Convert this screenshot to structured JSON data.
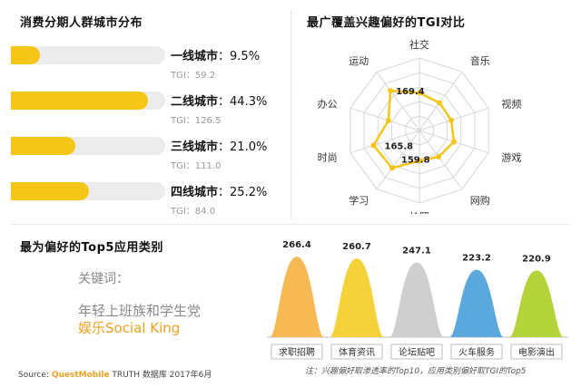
{
  "city_section": {
    "title": "消费分期人群城市分布"
  },
  "radar_section": {
    "title": "最广覆盖兴趣偏好的TGI对比"
  },
  "apps_section": {
    "title": "最为偏好的Top5应用类别",
    "keyword_label": "关键词：",
    "keyword_line1": "年轻上班族和学生党",
    "keyword_line2": "娱乐Social King"
  },
  "footer": {
    "source_prefix": "Source: ",
    "source_brand": "QuestMobile",
    "source_rest": " TRUTH 数据库 2017年6月",
    "note": "注：兴趣偏好取渗透率的Top10，应用类别偏好取TGI的Top5"
  },
  "colors": {
    "accent": "#f5c518",
    "track": "#ececec"
  },
  "chart_data": [
    {
      "type": "bar",
      "orientation": "horizontal",
      "title": "消费分期人群城市分布",
      "categories": [
        "一线城市",
        "二线城市",
        "三线城市",
        "四线城市"
      ],
      "values": [
        9.5,
        44.3,
        21.0,
        25.2
      ],
      "value_labels": [
        "9.5%",
        "44.3%",
        "21.0%",
        "25.2%"
      ],
      "tgi_labels": [
        "TGI：59.2",
        "TGI：126.5",
        "TGI：111.0",
        "TGI：84.0"
      ],
      "xlim": [
        0,
        50
      ],
      "color": "#f5c518"
    },
    {
      "type": "radar",
      "title": "最广覆盖兴趣偏好的TGI对比",
      "categories": [
        "社交",
        "音乐",
        "视频",
        "游戏",
        "网购",
        "拍照",
        "学习",
        "时尚",
        "办公",
        "运动"
      ],
      "values": [
        130,
        118,
        115,
        125,
        112,
        104,
        159.8,
        165.8,
        112,
        169.4
      ],
      "labeled_points": [
        {
          "category": "运动",
          "value": 169.4,
          "label": "169.4"
        },
        {
          "category": "时尚",
          "value": 165.8,
          "label": "165.8"
        },
        {
          "category": "学习",
          "value": 159.8,
          "label": "159.8"
        }
      ],
      "rmax": 250,
      "color": "#f5c518"
    },
    {
      "type": "bar",
      "title": "最为偏好的Top5应用类别",
      "categories": [
        "求职招聘",
        "体育资讯",
        "论坛贴吧",
        "火车服务",
        "电影演出"
      ],
      "values": [
        266.4,
        260.7,
        247.1,
        223.2,
        220.9
      ],
      "value_labels": [
        "266.4",
        "260.7",
        "247.1",
        "223.2",
        "220.9"
      ],
      "ylim": [
        0,
        300
      ],
      "colors": [
        "#f7b954",
        "#f5d23a",
        "#cfcfcf",
        "#5aa8dc",
        "#b4d33a"
      ]
    }
  ]
}
